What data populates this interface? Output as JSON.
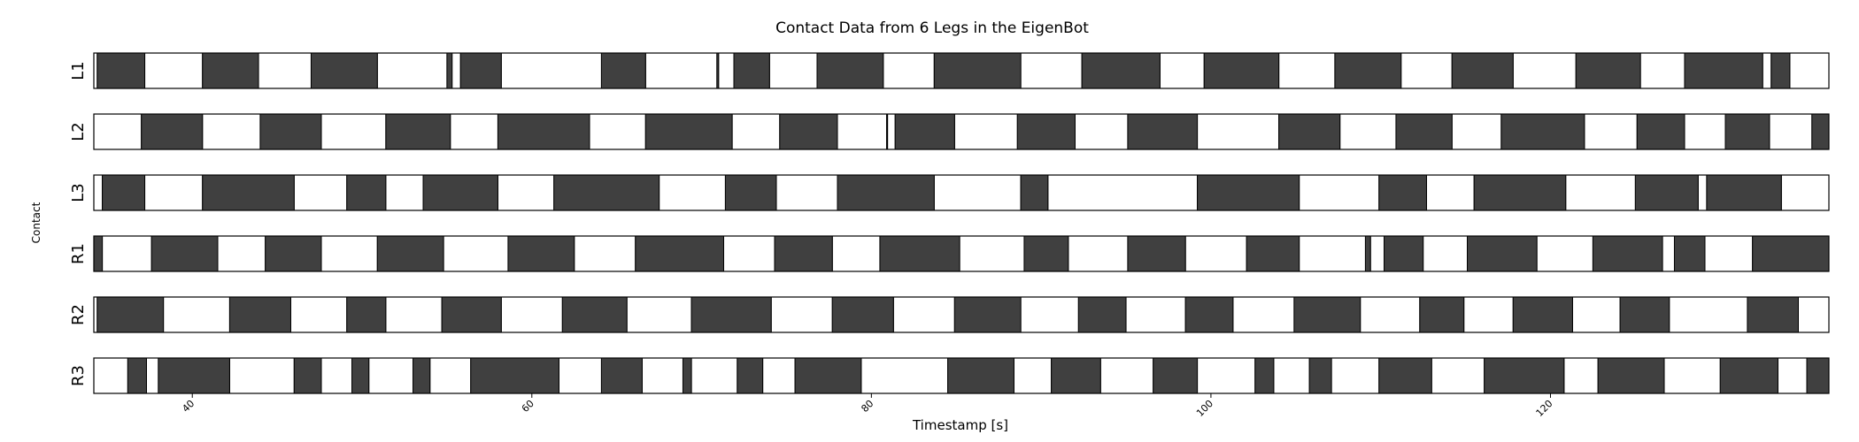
{
  "chart_data": {
    "type": "gantt",
    "title": "Contact Data from 6 Legs in the EigenBot",
    "xlabel": "Timestamp [s]",
    "ylabel": "Contact",
    "xlim": [
      34.2,
      136.4
    ],
    "xticks": [
      40,
      60,
      80,
      100,
      120
    ],
    "contact_color": "#404040",
    "swing_color": "#ffffff",
    "series": [
      {
        "name": "L1",
        "contact_intervals": [
          [
            34.4,
            37.2
          ],
          [
            40.6,
            43.9
          ],
          [
            47.0,
            50.9
          ],
          [
            55.0,
            55.3
          ],
          [
            55.8,
            58.2
          ],
          [
            64.1,
            66.7
          ],
          [
            70.9,
            71.0
          ],
          [
            71.9,
            74.0
          ],
          [
            76.8,
            80.7
          ],
          [
            83.7,
            88.8
          ],
          [
            92.4,
            97.0
          ],
          [
            99.6,
            104.0
          ],
          [
            107.3,
            111.2
          ],
          [
            114.2,
            117.8
          ],
          [
            121.5,
            125.3
          ],
          [
            127.9,
            132.5
          ],
          [
            133.0,
            134.1
          ]
        ]
      },
      {
        "name": "L2",
        "contact_intervals": [
          [
            37.0,
            40.6
          ],
          [
            44.0,
            47.6
          ],
          [
            51.4,
            55.2
          ],
          [
            58.0,
            63.4
          ],
          [
            66.7,
            71.8
          ],
          [
            74.6,
            78.0
          ],
          [
            80.9,
            80.95
          ],
          [
            81.4,
            84.9
          ],
          [
            88.6,
            92.0
          ],
          [
            95.1,
            99.2
          ],
          [
            104.0,
            107.6
          ],
          [
            110.9,
            114.2
          ],
          [
            117.1,
            122.0
          ],
          [
            125.1,
            127.9
          ],
          [
            130.3,
            132.9
          ],
          [
            135.4,
            136.4
          ]
        ]
      },
      {
        "name": "L3",
        "contact_intervals": [
          [
            34.7,
            37.2
          ],
          [
            40.6,
            46.0
          ],
          [
            49.1,
            51.4
          ],
          [
            53.6,
            58.0
          ],
          [
            61.3,
            67.5
          ],
          [
            71.4,
            74.4
          ],
          [
            78.0,
            83.7
          ],
          [
            88.8,
            90.4
          ],
          [
            99.2,
            105.2
          ],
          [
            109.9,
            112.7
          ],
          [
            115.5,
            120.9
          ],
          [
            125.0,
            128.7
          ],
          [
            129.2,
            133.6
          ]
        ]
      },
      {
        "name": "R1",
        "contact_intervals": [
          [
            34.2,
            34.7
          ],
          [
            37.6,
            41.5
          ],
          [
            44.3,
            47.6
          ],
          [
            50.9,
            54.8
          ],
          [
            58.6,
            62.5
          ],
          [
            66.1,
            71.3
          ],
          [
            74.3,
            77.7
          ],
          [
            80.5,
            85.2
          ],
          [
            89.0,
            91.6
          ],
          [
            95.1,
            98.5
          ],
          [
            102.1,
            105.2
          ],
          [
            109.1,
            109.4
          ],
          [
            110.2,
            112.5
          ],
          [
            115.1,
            119.2
          ],
          [
            122.5,
            126.6
          ],
          [
            127.3,
            129.1
          ],
          [
            131.9,
            136.4
          ]
        ]
      },
      {
        "name": "R2",
        "contact_intervals": [
          [
            34.4,
            38.3
          ],
          [
            42.2,
            45.8
          ],
          [
            49.1,
            51.4
          ],
          [
            54.7,
            58.2
          ],
          [
            61.8,
            65.6
          ],
          [
            69.4,
            74.1
          ],
          [
            77.7,
            81.3
          ],
          [
            84.9,
            88.8
          ],
          [
            92.2,
            95.0
          ],
          [
            98.5,
            101.3
          ],
          [
            104.9,
            108.8
          ],
          [
            112.3,
            114.9
          ],
          [
            117.8,
            121.3
          ],
          [
            124.1,
            127.0
          ],
          [
            131.6,
            134.6
          ]
        ]
      },
      {
        "name": "R3",
        "contact_intervals": [
          [
            36.2,
            37.3
          ],
          [
            38.0,
            42.2
          ],
          [
            46.0,
            47.6
          ],
          [
            49.4,
            50.4
          ],
          [
            53.0,
            54.0
          ],
          [
            56.4,
            61.6
          ],
          [
            64.1,
            66.5
          ],
          [
            68.9,
            69.4
          ],
          [
            72.1,
            73.6
          ],
          [
            75.5,
            79.4
          ],
          [
            84.5,
            88.4
          ],
          [
            90.6,
            93.5
          ],
          [
            96.6,
            99.2
          ],
          [
            102.6,
            103.7
          ],
          [
            105.8,
            107.1
          ],
          [
            109.9,
            113.0
          ],
          [
            116.1,
            120.8
          ],
          [
            122.8,
            126.7
          ],
          [
            130.0,
            133.4
          ],
          [
            135.1,
            136.4
          ]
        ]
      }
    ]
  }
}
